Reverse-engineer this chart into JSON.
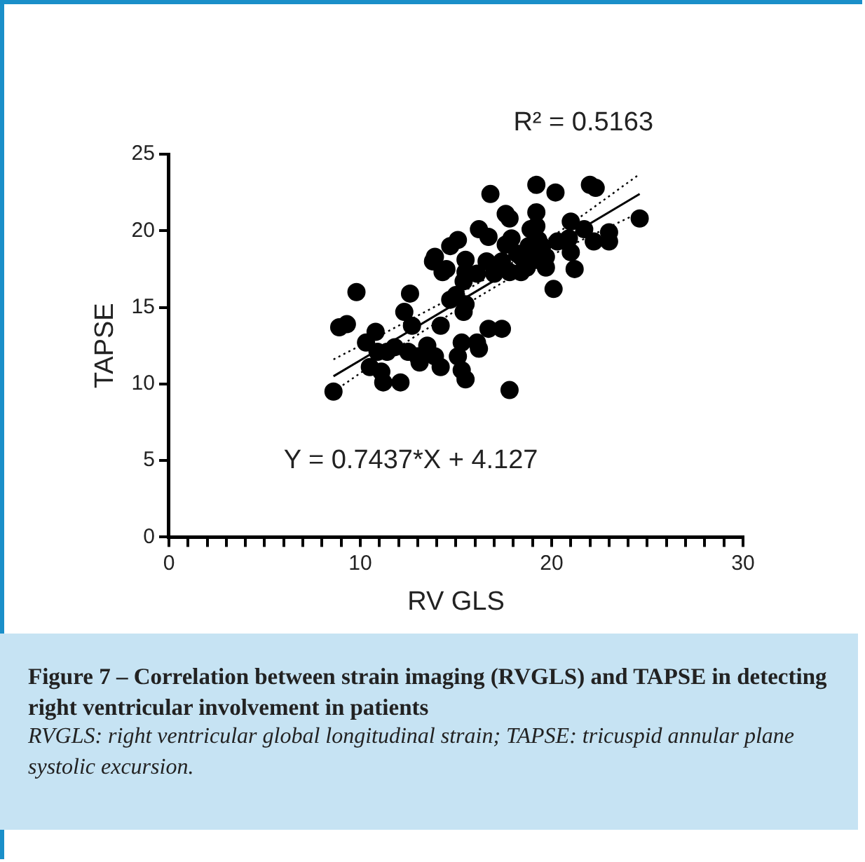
{
  "chart_data": {
    "type": "scatter",
    "title": "Figure 7 – Correlation between strain imaging (RVGLS) and TAPSE in detecting right ventricular involvement in patients",
    "subtitle": "RVGLS: right ventricular global longitudinal strain; TAPSE: tricuspid annular plane systolic excursion.",
    "xlabel": "RV GLS",
    "ylabel": "TAPSE",
    "annotations": [
      "R² = 0.5163",
      "Y = 0.7437*X + 4.127"
    ],
    "xlim": [
      0,
      30
    ],
    "ylim": [
      0,
      25
    ],
    "xticks": [
      0,
      {
        "value": 1,
        "label": null
      },
      {
        "value": 2,
        "label": null
      },
      {
        "value": 3,
        "label": null
      },
      {
        "value": 4,
        "label": null
      },
      {
        "value": 5,
        "label": null
      },
      {
        "value": 6,
        "label": null
      },
      {
        "value": 7,
        "label": null
      },
      {
        "value": 8,
        "label": null
      },
      {
        "value": 9,
        "label": null
      },
      10,
      {
        "value": 11,
        "label": null
      },
      {
        "value": 12,
        "label": null
      },
      {
        "value": 13,
        "label": null
      },
      {
        "value": 14,
        "label": null
      },
      {
        "value": 15,
        "label": null
      },
      {
        "value": 16,
        "label": null
      },
      {
        "value": 17,
        "label": null
      },
      {
        "value": 18,
        "label": null
      },
      {
        "value": 19,
        "label": null
      },
      20,
      {
        "value": 21,
        "label": null
      },
      {
        "value": 22,
        "label": null
      },
      {
        "value": 23,
        "label": null
      },
      {
        "value": 24,
        "label": null
      },
      {
        "value": 25,
        "label": null
      },
      {
        "value": 26,
        "label": null
      },
      {
        "value": 27,
        "label": null
      },
      {
        "value": 28,
        "label": null
      },
      {
        "value": 29,
        "label": null
      },
      30
    ],
    "yticks": [
      0,
      5,
      10,
      15,
      20,
      25
    ],
    "grid": false,
    "legend": false,
    "series": [
      {
        "type": "scatter",
        "marker": "circle",
        "color": "#000000",
        "x": [
          8.6,
          8.9,
          9.3,
          9.8,
          10.3,
          10.8,
          10.5,
          11.1,
          11.2,
          10.9,
          11.4,
          12.1,
          12.3,
          12.6,
          12.7,
          11.8,
          12.5,
          13.0,
          13.1,
          13.5,
          13.9,
          14.2,
          14.2,
          13.9,
          13.8,
          14.5,
          14.7,
          15.1,
          14.7,
          15.0,
          15.4,
          15.3,
          15.1,
          15.3,
          15.5,
          15.4,
          15.5,
          15.5,
          16.1,
          16.2,
          16.7,
          17.4,
          16.2,
          16.1,
          16.8,
          16.7,
          16.6,
          17.0,
          17.4,
          17.6,
          17.8,
          17.6,
          17.9,
          17.8,
          17.8,
          18.2,
          18.4,
          18.8,
          18.9,
          19.2,
          19.3,
          19.2,
          19.2,
          19.7,
          20.1,
          20.2,
          20.3,
          20.9,
          21.0,
          21.0,
          21.2,
          21.7,
          22.0,
          22.3,
          22.2,
          23.0,
          23.0,
          24.6,
          18.4,
          18.7,
          19.5,
          19.7,
          19.2,
          15.5,
          14.3
        ],
        "values": [
          9.5,
          13.7,
          13.9,
          16.0,
          12.7,
          13.4,
          11.1,
          10.8,
          10.1,
          12.1,
          12.1,
          10.1,
          14.7,
          15.9,
          13.8,
          12.4,
          12.1,
          11.8,
          11.4,
          12.5,
          11.8,
          11.1,
          13.8,
          18.3,
          18.0,
          17.5,
          19.0,
          19.4,
          15.5,
          15.8,
          14.7,
          12.7,
          11.8,
          10.9,
          10.3,
          16.7,
          17.3,
          18.1,
          12.7,
          12.3,
          13.6,
          13.6,
          20.1,
          17.2,
          22.4,
          19.6,
          18.0,
          17.2,
          18.0,
          21.1,
          20.8,
          19.1,
          19.5,
          17.3,
          9.6,
          18.5,
          17.3,
          19.0,
          20.1,
          18.1,
          19.4,
          21.2,
          23.0,
          17.6,
          16.2,
          22.5,
          19.3,
          19.5,
          18.6,
          20.6,
          17.5,
          20.1,
          23.0,
          22.8,
          19.3,
          19.9,
          19.3,
          20.8,
          18.3,
          17.6,
          19.0,
          18.3,
          20.3,
          15.2,
          17.3
        ]
      },
      {
        "type": "line",
        "marker": "none",
        "line_style": "solid",
        "color": "#000000",
        "x": [
          8.6,
          24.6
        ],
        "values": [
          10.5,
          22.4
        ]
      },
      {
        "type": "line",
        "marker": "none",
        "line_style": "dotted",
        "color": "#000000",
        "x": [
          8.6,
          12,
          16.6,
          20,
          24.6
        ],
        "values": [
          9.5,
          12.4,
          16.0,
          18.4,
          21.2
        ]
      },
      {
        "type": "line",
        "marker": "none",
        "line_style": "dotted",
        "color": "#000000",
        "x": [
          8.6,
          12,
          16.6,
          20,
          24.6
        ],
        "values": [
          11.6,
          13.8,
          16.9,
          19.6,
          23.7
        ]
      }
    ]
  }
}
